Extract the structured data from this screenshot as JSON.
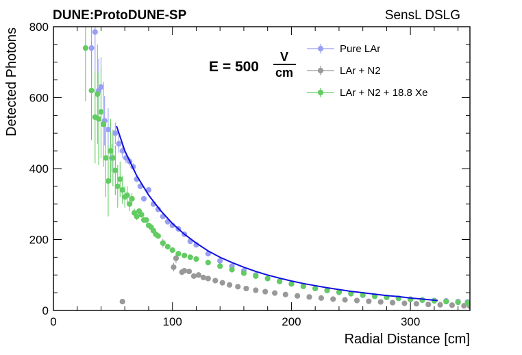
{
  "header": {
    "experiment_title": "DUNE:ProtoDUNE-SP",
    "detector_label": "SensL DSLG"
  },
  "field_label": {
    "prefix": "E = 500",
    "unit_numerator": "V",
    "unit_denominator": "cm"
  },
  "colors": {
    "pure_lar": "#9aa0f0",
    "lar_n2": "#999999",
    "lar_n2_xe": "#62cc62",
    "fit_curve": "#1010e0",
    "axis": "#000000"
  },
  "chart_data": {
    "type": "scatter",
    "xlabel": "Radial Distance [cm]",
    "ylabel": "Detected Photons",
    "xlim": [
      0,
      350
    ],
    "ylim": [
      0,
      800
    ],
    "x_major_ticks": [
      0,
      100,
      200,
      300
    ],
    "y_major_ticks": [
      0,
      200,
      400,
      600,
      800
    ],
    "x_tick_labels": [
      "0",
      "100",
      "200",
      "300"
    ],
    "y_tick_labels": [
      "0",
      "200",
      "400",
      "600",
      "800"
    ],
    "legend_position": "top-right",
    "series": [
      {
        "name": "Pure LAr",
        "color": "#9aa0f0",
        "x": [
          32,
          35,
          38,
          40,
          43,
          46,
          49,
          52,
          55,
          58,
          61,
          64,
          67,
          70,
          73,
          76,
          80,
          84,
          88,
          92,
          96,
          100,
          105,
          110,
          115,
          120,
          130,
          140,
          150,
          160,
          170,
          180,
          190,
          200,
          210,
          220,
          230,
          240,
          250,
          260,
          270,
          280,
          290,
          300,
          310,
          320,
          330,
          340,
          348
        ],
        "y": [
          740,
          785,
          620,
          630,
          535,
          510,
          430,
          500,
          470,
          450,
          430,
          420,
          405,
          370,
          350,
          315,
          340,
          300,
          285,
          265,
          250,
          240,
          230,
          215,
          195,
          185,
          160,
          140,
          125,
          112,
          100,
          90,
          82,
          75,
          68,
          62,
          56,
          51,
          47,
          43,
          40,
          37,
          34,
          32,
          30,
          28,
          27,
          25,
          24
        ],
        "y_err": [
          100,
          110,
          90,
          85,
          70,
          60,
          40,
          30,
          25,
          20,
          15,
          12,
          10,
          8,
          6,
          5,
          4,
          4,
          4,
          3,
          3,
          3,
          3,
          3,
          3,
          3,
          2,
          2,
          2,
          2,
          2,
          2,
          2,
          2,
          2,
          2,
          2,
          2,
          2,
          2,
          2,
          2,
          2,
          2,
          2,
          2,
          2,
          2,
          2
        ]
      },
      {
        "name": "LAr + N2",
        "color": "#999999",
        "x": [
          58,
          92,
          101,
          103,
          108,
          110,
          114,
          118,
          122,
          126,
          130,
          136,
          142,
          148,
          155,
          162,
          170,
          178,
          186,
          195,
          205,
          215,
          225,
          235,
          245,
          255,
          265,
          275,
          285,
          295,
          305,
          315,
          325,
          335,
          345,
          350
        ],
        "y": [
          25,
          190,
          122,
          147,
          108,
          112,
          110,
          97,
          100,
          93,
          90,
          84,
          78,
          72,
          67,
          62,
          57,
          53,
          49,
          45,
          41,
          38,
          35,
          32,
          30,
          28,
          26,
          24,
          22,
          20,
          19,
          17,
          16,
          15,
          13,
          12
        ],
        "y_err": [
          6,
          12,
          12,
          14,
          8,
          6,
          5,
          4,
          4,
          3,
          3,
          3,
          2,
          2,
          2,
          2,
          2,
          2,
          2,
          2,
          2,
          2,
          2,
          2,
          2,
          2,
          2,
          2,
          2,
          2,
          2,
          2,
          2,
          2,
          2,
          2
        ]
      },
      {
        "name": "LAr + N2 + 18.8 Xe",
        "color": "#62cc62",
        "x": [
          27,
          32,
          35,
          37,
          38,
          40,
          42,
          44,
          46,
          48,
          50,
          52,
          54,
          56,
          58,
          60,
          62,
          64,
          66,
          68,
          70,
          72,
          74,
          76,
          78,
          80,
          82,
          84,
          86,
          88,
          92,
          96,
          100,
          105,
          110,
          115,
          120,
          130,
          140,
          150,
          160,
          170,
          180,
          190,
          200,
          210,
          220,
          230,
          240,
          250,
          260,
          270,
          280,
          290,
          300,
          310,
          320,
          330,
          340,
          348
        ],
        "y": [
          740,
          620,
          545,
          610,
          540,
          560,
          525,
          430,
          365,
          450,
          430,
          395,
          350,
          370,
          340,
          320,
          325,
          300,
          315,
          275,
          265,
          280,
          270,
          255,
          255,
          240,
          235,
          225,
          215,
          210,
          190,
          180,
          170,
          160,
          155,
          150,
          145,
          135,
          125,
          115,
          105,
          97,
          90,
          82,
          75,
          68,
          62,
          57,
          52,
          48,
          44,
          40,
          37,
          34,
          31,
          29,
          27,
          25,
          23,
          21
        ],
        "y_err": [
          150,
          140,
          130,
          140,
          130,
          130,
          120,
          110,
          100,
          90,
          80,
          70,
          60,
          50,
          40,
          30,
          25,
          20,
          15,
          12,
          10,
          8,
          8,
          6,
          5,
          5,
          4,
          4,
          4,
          3,
          3,
          3,
          3,
          2,
          2,
          2,
          2,
          2,
          2,
          2,
          2,
          2,
          2,
          2,
          2,
          2,
          2,
          2,
          2,
          2,
          2,
          2,
          2,
          2,
          2,
          2,
          2,
          2,
          2,
          2
        ]
      }
    ],
    "fit": {
      "name": "fit",
      "color": "#1010e0",
      "x": [
        53,
        60,
        70,
        80,
        90,
        100,
        110,
        120,
        130,
        140,
        150,
        160,
        170,
        180,
        190,
        200,
        210,
        220,
        230,
        240,
        250,
        260,
        270,
        280,
        290,
        300,
        310,
        323
      ],
      "y": [
        520,
        450,
        380,
        325,
        282,
        245,
        215,
        190,
        168,
        150,
        135,
        122,
        110,
        100,
        91,
        83,
        76,
        70,
        64,
        59,
        54,
        50,
        46,
        42,
        39,
        35,
        32,
        28
      ]
    }
  }
}
